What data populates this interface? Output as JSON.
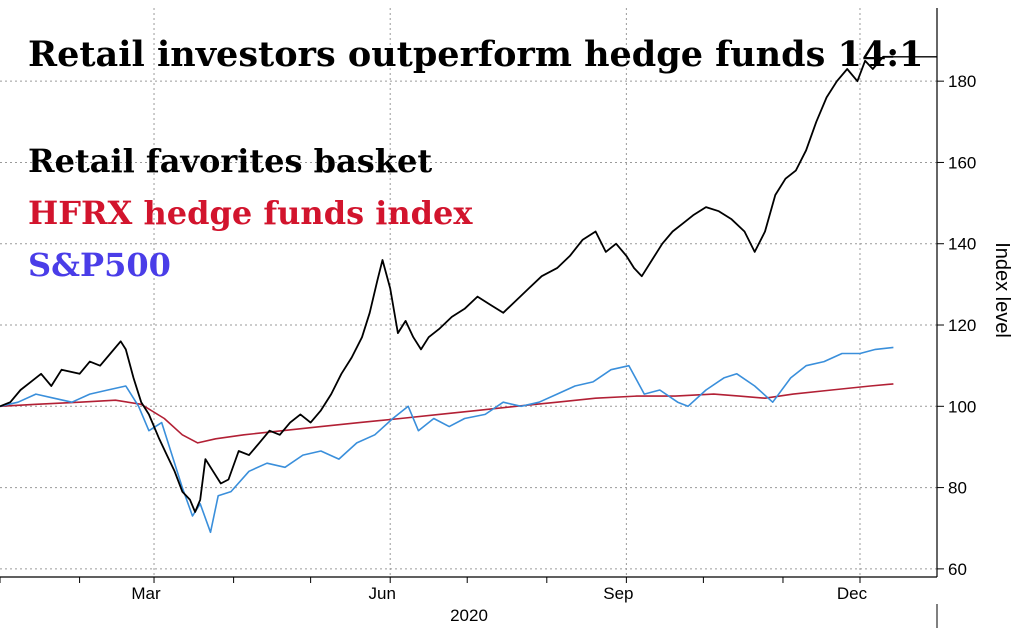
{
  "chart_data": {
    "type": "line",
    "title": "Retail investors outperform hedge funds 14:1",
    "ylabel": "Index level",
    "ylim": [
      58,
      198
    ],
    "y_ticks": [
      60,
      80,
      100,
      120,
      140,
      160,
      180
    ],
    "x_ticks": [
      {
        "label": "Mar",
        "x": "2020-03-01"
      },
      {
        "label": "Jun",
        "x": "2020-06-01"
      },
      {
        "label": "Sep",
        "x": "2020-09-01"
      },
      {
        "label": "Dec",
        "x": "2020-12-01"
      }
    ],
    "x_year_label": "2020",
    "xlim": [
      "2020-01-01",
      "2020-12-31"
    ],
    "colors": {
      "retail": "#000000",
      "hfrx": "#b22035",
      "sp500": "#3a8fdb"
    },
    "series": [
      {
        "name": "Retail favorites basket",
        "color": "#000000",
        "points": [
          [
            "2020-01-01",
            100
          ],
          [
            "2020-01-05",
            101
          ],
          [
            "2020-01-09",
            104
          ],
          [
            "2020-01-13",
            106
          ],
          [
            "2020-01-17",
            108
          ],
          [
            "2020-01-21",
            105
          ],
          [
            "2020-01-25",
            109
          ],
          [
            "2020-02-01",
            108
          ],
          [
            "2020-02-05",
            111
          ],
          [
            "2020-02-09",
            110
          ],
          [
            "2020-02-13",
            113
          ],
          [
            "2020-02-17",
            116
          ],
          [
            "2020-02-19",
            114
          ],
          [
            "2020-02-22",
            107
          ],
          [
            "2020-02-25",
            101
          ],
          [
            "2020-02-28",
            98
          ],
          [
            "2020-03-03",
            92
          ],
          [
            "2020-03-06",
            88
          ],
          [
            "2020-03-09",
            84
          ],
          [
            "2020-03-12",
            79
          ],
          [
            "2020-03-15",
            77
          ],
          [
            "2020-03-17",
            74
          ],
          [
            "2020-03-19",
            77
          ],
          [
            "2020-03-21",
            87
          ],
          [
            "2020-03-24",
            84
          ],
          [
            "2020-03-27",
            81
          ],
          [
            "2020-03-30",
            82
          ],
          [
            "2020-04-03",
            89
          ],
          [
            "2020-04-07",
            88
          ],
          [
            "2020-04-11",
            91
          ],
          [
            "2020-04-15",
            94
          ],
          [
            "2020-04-19",
            93
          ],
          [
            "2020-04-23",
            96
          ],
          [
            "2020-04-27",
            98
          ],
          [
            "2020-05-01",
            96
          ],
          [
            "2020-05-05",
            99
          ],
          [
            "2020-05-09",
            103
          ],
          [
            "2020-05-13",
            108
          ],
          [
            "2020-05-17",
            112
          ],
          [
            "2020-05-21",
            117
          ],
          [
            "2020-05-24",
            123
          ],
          [
            "2020-05-27",
            131
          ],
          [
            "2020-05-29",
            136
          ],
          [
            "2020-06-01",
            129
          ],
          [
            "2020-06-04",
            118
          ],
          [
            "2020-06-07",
            121
          ],
          [
            "2020-06-10",
            117
          ],
          [
            "2020-06-13",
            114
          ],
          [
            "2020-06-16",
            117
          ],
          [
            "2020-06-20",
            119
          ],
          [
            "2020-06-25",
            122
          ],
          [
            "2020-06-30",
            124
          ],
          [
            "2020-07-05",
            127
          ],
          [
            "2020-07-10",
            125
          ],
          [
            "2020-07-15",
            123
          ],
          [
            "2020-07-20",
            126
          ],
          [
            "2020-07-25",
            129
          ],
          [
            "2020-07-30",
            132
          ],
          [
            "2020-08-05",
            134
          ],
          [
            "2020-08-10",
            137
          ],
          [
            "2020-08-15",
            141
          ],
          [
            "2020-08-20",
            143
          ],
          [
            "2020-08-24",
            138
          ],
          [
            "2020-08-28",
            140
          ],
          [
            "2020-09-01",
            137
          ],
          [
            "2020-09-04",
            134
          ],
          [
            "2020-09-07",
            132
          ],
          [
            "2020-09-11",
            136
          ],
          [
            "2020-09-15",
            140
          ],
          [
            "2020-09-19",
            143
          ],
          [
            "2020-09-23",
            145
          ],
          [
            "2020-09-27",
            147
          ],
          [
            "2020-10-02",
            149
          ],
          [
            "2020-10-07",
            148
          ],
          [
            "2020-10-12",
            146
          ],
          [
            "2020-10-17",
            143
          ],
          [
            "2020-10-21",
            138
          ],
          [
            "2020-10-25",
            143
          ],
          [
            "2020-10-29",
            152
          ],
          [
            "2020-11-02",
            156
          ],
          [
            "2020-11-06",
            158
          ],
          [
            "2020-11-10",
            163
          ],
          [
            "2020-11-14",
            170
          ],
          [
            "2020-11-18",
            176
          ],
          [
            "2020-11-22",
            180
          ],
          [
            "2020-11-26",
            183
          ],
          [
            "2020-11-30",
            180
          ],
          [
            "2020-12-03",
            185
          ],
          [
            "2020-12-06",
            183
          ],
          [
            "2020-12-10",
            186
          ],
          [
            "2020-12-14",
            186
          ]
        ]
      },
      {
        "name": "HFRX hedge funds index",
        "color": "#b22035",
        "points": [
          [
            "2020-01-01",
            100
          ],
          [
            "2020-01-15",
            100.5
          ],
          [
            "2020-02-01",
            101
          ],
          [
            "2020-02-15",
            101.5
          ],
          [
            "2020-02-25",
            100.5
          ],
          [
            "2020-03-05",
            97
          ],
          [
            "2020-03-12",
            93
          ],
          [
            "2020-03-18",
            91
          ],
          [
            "2020-03-25",
            92
          ],
          [
            "2020-04-05",
            93
          ],
          [
            "2020-04-20",
            94
          ],
          [
            "2020-05-05",
            95
          ],
          [
            "2020-05-20",
            96
          ],
          [
            "2020-06-05",
            97
          ],
          [
            "2020-06-20",
            98
          ],
          [
            "2020-07-05",
            99
          ],
          [
            "2020-07-20",
            100
          ],
          [
            "2020-08-05",
            101
          ],
          [
            "2020-08-20",
            102
          ],
          [
            "2020-09-05",
            102.5
          ],
          [
            "2020-09-20",
            102.5
          ],
          [
            "2020-10-05",
            103
          ],
          [
            "2020-10-15",
            102.5
          ],
          [
            "2020-10-25",
            102
          ],
          [
            "2020-11-05",
            103
          ],
          [
            "2020-11-20",
            104
          ],
          [
            "2020-12-05",
            105
          ],
          [
            "2020-12-14",
            105.5
          ]
        ]
      },
      {
        "name": "S&P500",
        "color": "#3a8fdb",
        "points": [
          [
            "2020-01-01",
            100
          ],
          [
            "2020-01-08",
            101
          ],
          [
            "2020-01-15",
            103
          ],
          [
            "2020-01-22",
            102
          ],
          [
            "2020-01-29",
            101
          ],
          [
            "2020-02-05",
            103
          ],
          [
            "2020-02-12",
            104
          ],
          [
            "2020-02-19",
            105
          ],
          [
            "2020-02-24",
            100
          ],
          [
            "2020-02-28",
            94
          ],
          [
            "2020-03-04",
            96
          ],
          [
            "2020-03-09",
            86
          ],
          [
            "2020-03-12",
            80
          ],
          [
            "2020-03-16",
            73
          ],
          [
            "2020-03-19",
            76
          ],
          [
            "2020-03-23",
            69
          ],
          [
            "2020-03-26",
            78
          ],
          [
            "2020-03-31",
            79
          ],
          [
            "2020-04-07",
            84
          ],
          [
            "2020-04-14",
            86
          ],
          [
            "2020-04-21",
            85
          ],
          [
            "2020-04-28",
            88
          ],
          [
            "2020-05-05",
            89
          ],
          [
            "2020-05-12",
            87
          ],
          [
            "2020-05-19",
            91
          ],
          [
            "2020-05-26",
            93
          ],
          [
            "2020-06-02",
            97
          ],
          [
            "2020-06-08",
            100
          ],
          [
            "2020-06-12",
            94
          ],
          [
            "2020-06-18",
            97
          ],
          [
            "2020-06-24",
            95
          ],
          [
            "2020-06-30",
            97
          ],
          [
            "2020-07-08",
            98
          ],
          [
            "2020-07-15",
            101
          ],
          [
            "2020-07-22",
            100
          ],
          [
            "2020-07-29",
            101
          ],
          [
            "2020-08-05",
            103
          ],
          [
            "2020-08-12",
            105
          ],
          [
            "2020-08-19",
            106
          ],
          [
            "2020-08-26",
            109
          ],
          [
            "2020-09-02",
            110
          ],
          [
            "2020-09-08",
            103
          ],
          [
            "2020-09-14",
            104
          ],
          [
            "2020-09-21",
            101
          ],
          [
            "2020-09-25",
            100
          ],
          [
            "2020-10-02",
            104
          ],
          [
            "2020-10-09",
            107
          ],
          [
            "2020-10-14",
            108
          ],
          [
            "2020-10-21",
            105
          ],
          [
            "2020-10-28",
            101
          ],
          [
            "2020-11-04",
            107
          ],
          [
            "2020-11-10",
            110
          ],
          [
            "2020-11-17",
            111
          ],
          [
            "2020-11-24",
            113
          ],
          [
            "2020-12-01",
            113
          ],
          [
            "2020-12-07",
            114
          ],
          [
            "2020-12-14",
            114.5
          ]
        ]
      }
    ]
  }
}
